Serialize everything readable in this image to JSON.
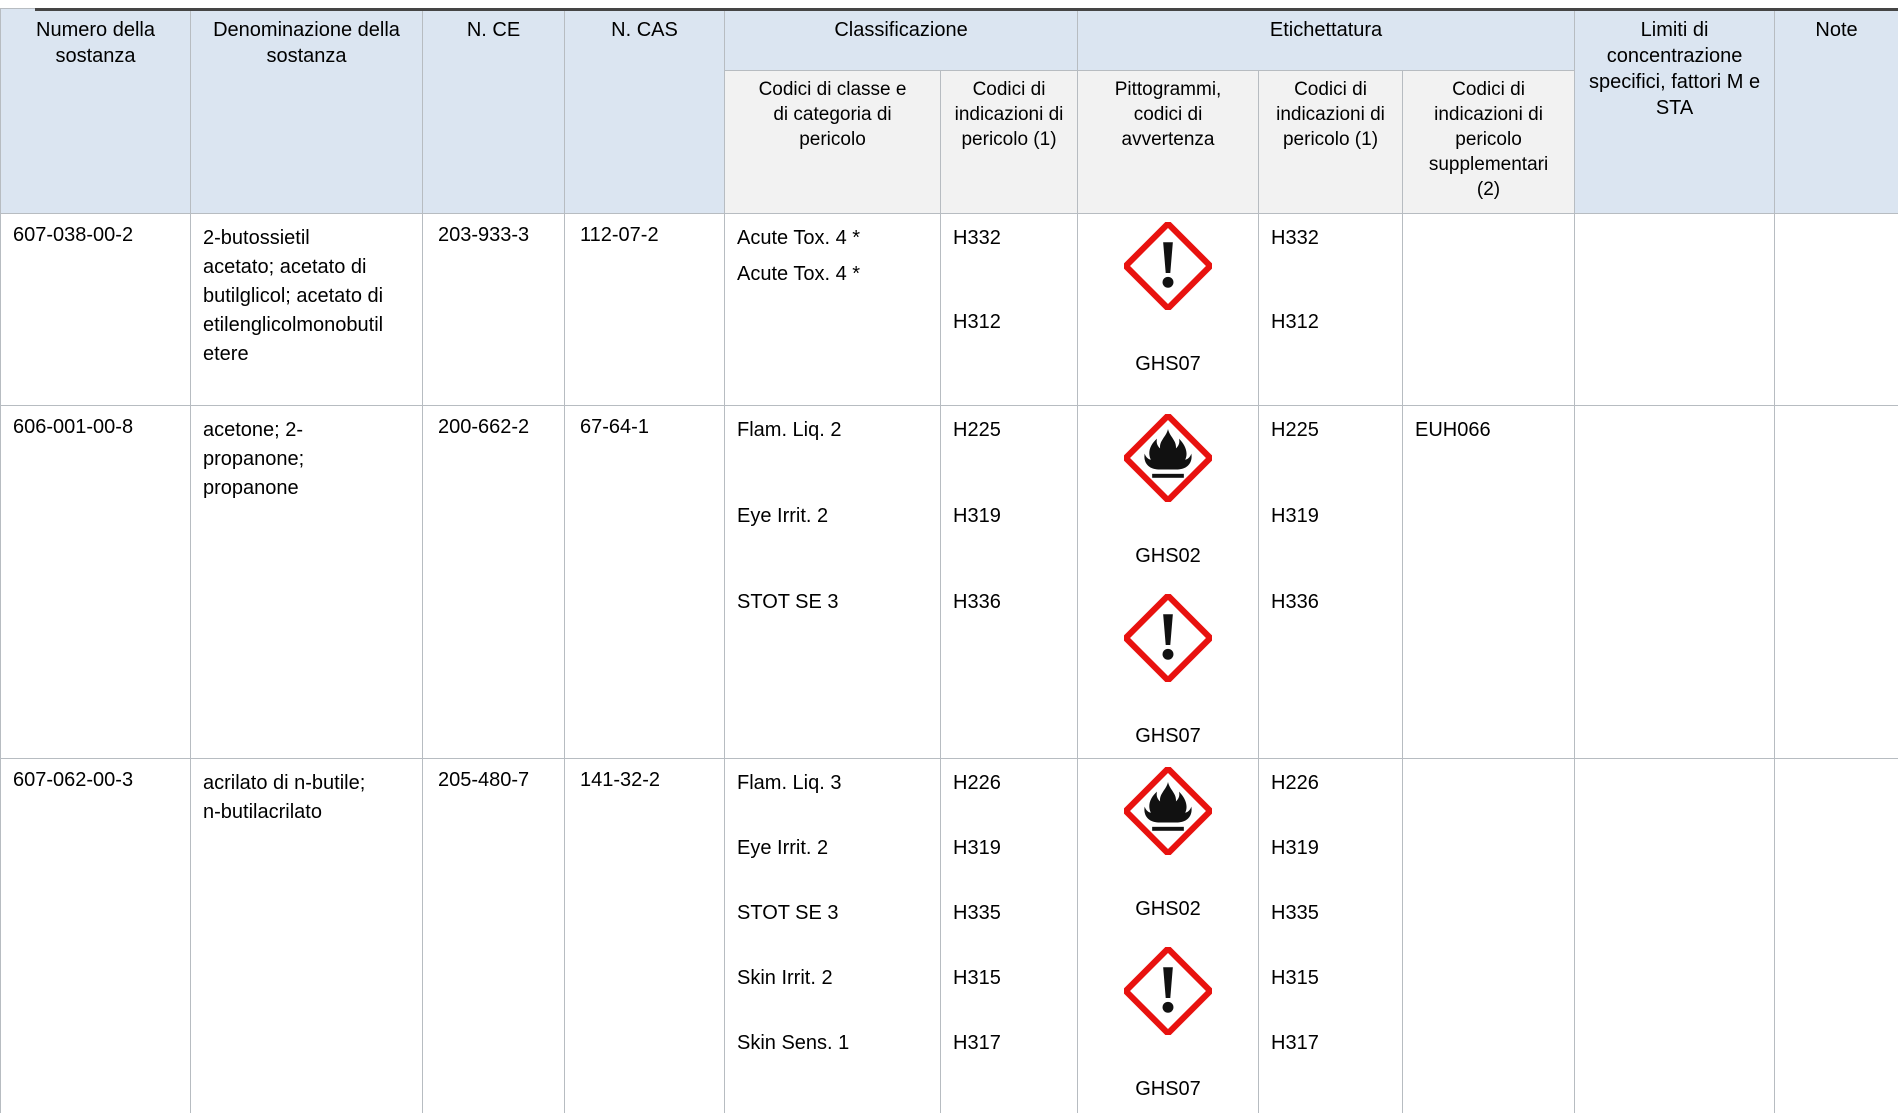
{
  "colors": {
    "header_blue": "#dbe5f1",
    "subheader_gray": "#f2f2f2",
    "border_gray": "#b7bcc1",
    "pictogram_red": "#e8120f",
    "top_strip": "#454545"
  },
  "table": {
    "header": {
      "substance_number": "Numero della sostanza",
      "substance_name": "Denominazione della sostanza",
      "ec_number": "N. CE",
      "cas_number": "N. CAS",
      "classification_group": "Classificazione",
      "labelling_group": "Etichettatura",
      "class_category_codes": "Codici di classe e di categoria di pericolo",
      "hazard_statement_codes_class": "Codici di indicazioni di pericolo (1)",
      "pictograms_signal_words": "Pittogrammi, codici di avvertenza",
      "hazard_statement_codes_label": "Codici di indicazioni di pericolo (1)",
      "supplementary_hazard_codes": "Codici di indicazioni di pericolo supplementari (2)",
      "concentration_limits": "Limiti di concentrazione specifici, fattori M e STA",
      "notes": "Note"
    },
    "rows": [
      {
        "substance_number": "607-038-00-2",
        "substance_name": "2-butossietil acetato; acetato di butilglicol; acetato di etilenglicolmonobutiletere",
        "ec_number": "203-933-3",
        "cas_number": "112-07-2",
        "classification_classes": [
          "Acute Tox. 4 *",
          "Acute Tox. 4 *"
        ],
        "classification_hazards": [
          "H332",
          "H312"
        ],
        "pictograms": [
          {
            "icon": "exclamation-mark",
            "code": "GHS07"
          }
        ],
        "labelling_hazards": [
          "H332",
          "H312"
        ],
        "supplementary_hazards": [],
        "concentration_limits": "",
        "notes": ""
      },
      {
        "substance_number": "606-001-00-8",
        "substance_name": "acetone; 2-propanone; propanone",
        "ec_number": "200-662-2",
        "cas_number": "67-64-1",
        "classification_classes": [
          "Flam. Liq. 2",
          "Eye Irrit. 2",
          "STOT SE 3"
        ],
        "classification_hazards": [
          "H225",
          "H319",
          "H336"
        ],
        "pictograms": [
          {
            "icon": "flame",
            "code": "GHS02"
          },
          {
            "icon": "exclamation-mark",
            "code": "GHS07"
          }
        ],
        "labelling_hazards": [
          "H225",
          "H319",
          "H336"
        ],
        "supplementary_hazards": [
          "EUH066"
        ],
        "concentration_limits": "",
        "notes": ""
      },
      {
        "substance_number": "607-062-00-3",
        "substance_name": "acrilato di n-butile; n-butilacrilato",
        "ec_number": "205-480-7",
        "cas_number": "141-32-2",
        "classification_classes": [
          "Flam. Liq. 3",
          "Eye Irrit. 2",
          "STOT SE 3",
          "Skin Irrit. 2",
          "Skin Sens. 1"
        ],
        "classification_hazards": [
          "H226",
          "H319",
          "H335",
          "H315",
          "H317"
        ],
        "pictograms": [
          {
            "icon": "flame",
            "code": "GHS02"
          },
          {
            "icon": "exclamation-mark",
            "code": "GHS07"
          }
        ],
        "labelling_hazards": [
          "H226",
          "H319",
          "H335",
          "H315",
          "H317"
        ],
        "supplementary_hazards": [],
        "concentration_limits": "",
        "notes": ""
      }
    ]
  }
}
